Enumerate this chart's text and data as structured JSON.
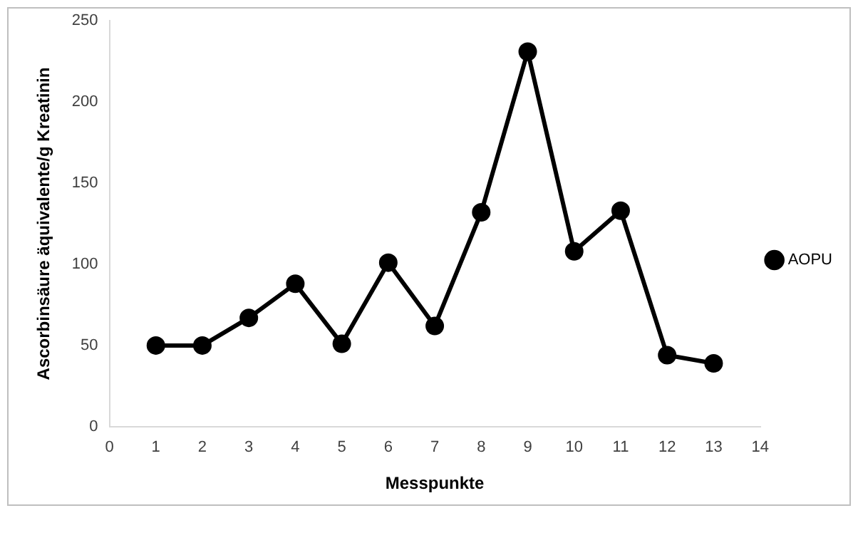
{
  "chart_data": {
    "type": "line",
    "xlabel": "Messpunkte",
    "ylabel": "Ascorbinsäure äquivalente/g Kreatinin",
    "x": [
      1,
      2,
      3,
      4,
      5,
      6,
      7,
      8,
      9,
      10,
      11,
      12,
      13
    ],
    "series": [
      {
        "name": "AOPU",
        "color": "#000000",
        "values": [
          50,
          50,
          67,
          88,
          51,
          101,
          62,
          132,
          231,
          108,
          133,
          44,
          39
        ]
      }
    ],
    "xlim": [
      0,
      14
    ],
    "xticks": [
      0,
      1,
      2,
      3,
      4,
      5,
      6,
      7,
      8,
      9,
      10,
      11,
      12,
      13,
      14
    ],
    "ylim": [
      0,
      250
    ],
    "yticks": [
      0,
      50,
      100,
      150,
      200,
      250
    ],
    "grid": false,
    "legend": "right",
    "marker": "circle",
    "line_style": "solid"
  }
}
